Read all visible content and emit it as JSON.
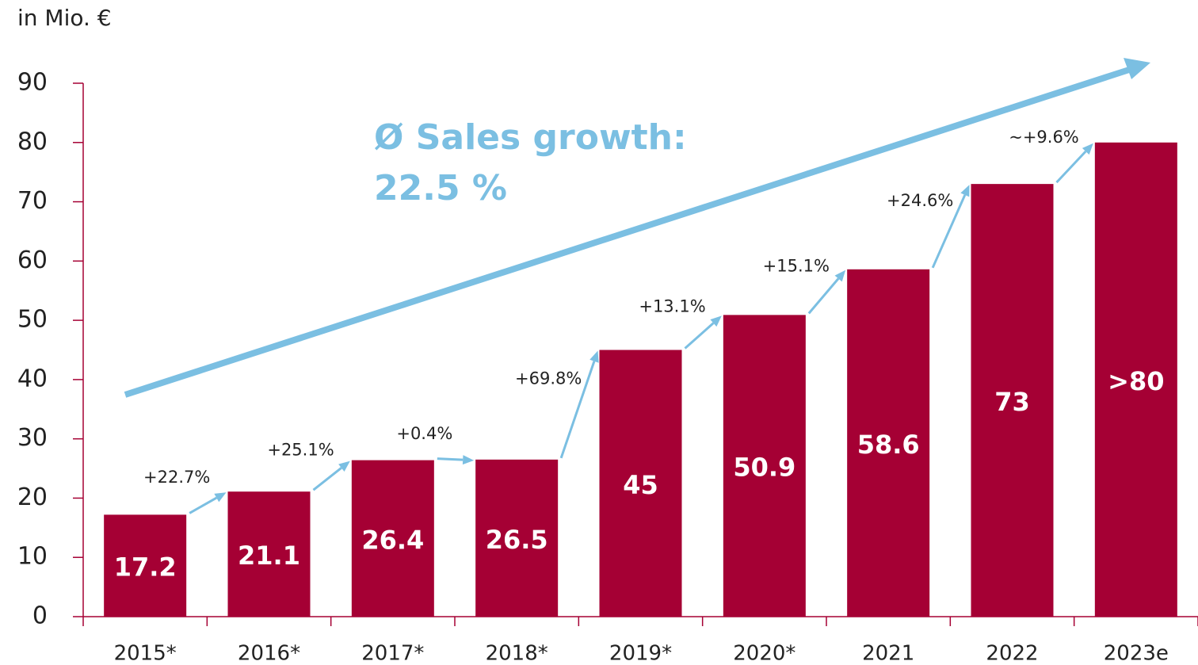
{
  "chart_data": {
    "type": "bar",
    "y_label": "in Mio. €",
    "categories": [
      "2015*",
      "2016*",
      "2017*",
      "2018*",
      "2019*",
      "2020*",
      "2021",
      "2022",
      "2023e"
    ],
    "values": [
      17.2,
      21.1,
      26.4,
      26.5,
      45,
      50.9,
      58.6,
      73,
      80
    ],
    "value_labels": [
      "17.2",
      "21.1",
      "26.4",
      "26.5",
      "45",
      "50.9",
      "58.6",
      "73",
      ">80"
    ],
    "growth_labels": [
      "+22.7%",
      "+25.1%",
      "+0.4%",
      "+69.8%",
      "+13.1%",
      "+15.1%",
      "+24.6%",
      "~+9.6%"
    ],
    "annotations": [
      "Ø Sales growth:",
      "22.5 %"
    ],
    "color": "#a50034",
    "arrow_color": "#7bbfe2",
    "ylim": [
      0,
      90
    ],
    "yticks": [
      0,
      10,
      20,
      30,
      40,
      50,
      60,
      70,
      80,
      90
    ]
  }
}
